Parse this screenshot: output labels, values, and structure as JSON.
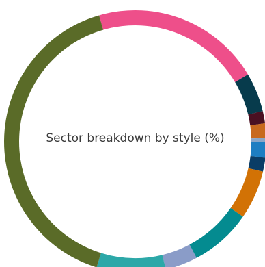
{
  "chart_data": {
    "type": "pie",
    "subtype": "donut",
    "title": "Sector breakdown by style (%)",
    "start_angle_deg": -16,
    "direction": "clockwise",
    "values": [
      20.9,
      4.8,
      1.5,
      1.8,
      0.5,
      1.9,
      1.7,
      6.0,
      7.6,
      4.0,
      8.5,
      40.8
    ],
    "colors": [
      "#EE4F8A",
      "#073B4C",
      "#4A1022",
      "#C8691E",
      "#8AA6C8",
      "#1E7EC2",
      "#0B3D66",
      "#D27205",
      "#048B90",
      "#8A9CC8",
      "#2CA8A8",
      "#5A6B28"
    ]
  }
}
